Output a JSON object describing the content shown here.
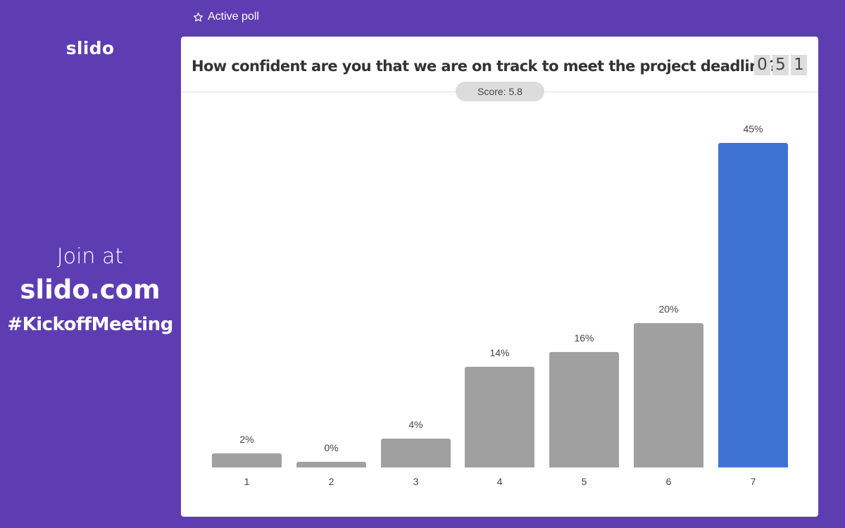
{
  "brand": {
    "logo": "slido"
  },
  "sidebar": {
    "join_line1": "Join at",
    "join_line2": "slido.com",
    "event_code": "#KickoffMeeting"
  },
  "header": {
    "active_label": "Active poll",
    "active_icon": "star-outline-icon"
  },
  "poll": {
    "question": "How confident are you that we are on track to meet the project deadline?",
    "participants_digits": [
      "0",
      "5",
      "1"
    ],
    "score_label": "Score: 5.8"
  },
  "colors": {
    "background": "#5e3db3",
    "bar": "#a0a0a0",
    "highlight_bar": "#3e73d4"
  },
  "chart_data": {
    "type": "bar",
    "title": "How confident are you that we are on track to meet the project deadline?",
    "categories": [
      "1",
      "2",
      "3",
      "4",
      "5",
      "6",
      "7"
    ],
    "values": [
      2,
      0,
      4,
      14,
      16,
      20,
      45
    ],
    "labels": [
      "2%",
      "0%",
      "4%",
      "14%",
      "16%",
      "20%",
      "45%"
    ],
    "highlighted_index": 6,
    "xlabel": "",
    "ylabel": "",
    "ylim": [
      0,
      45
    ],
    "grid": false,
    "legend": null,
    "annotation": "Score: 5.8"
  }
}
